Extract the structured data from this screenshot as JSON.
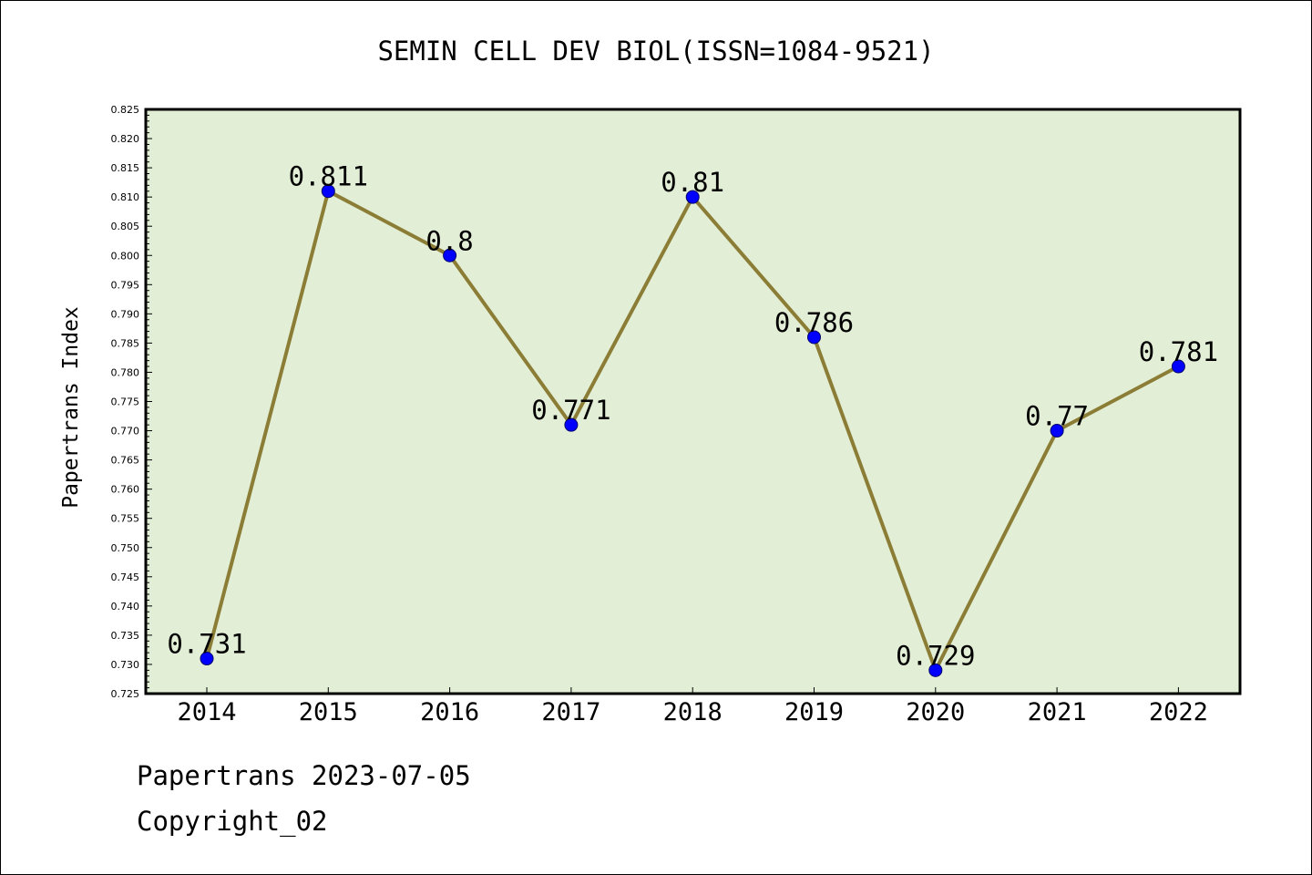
{
  "chart_data": {
    "type": "line",
    "title": "SEMIN CELL DEV BIOL(ISSN=1084-9521)",
    "xlabel": "",
    "ylabel": "Papertrans Index",
    "categories": [
      "2014",
      "2015",
      "2016",
      "2017",
      "2018",
      "2019",
      "2020",
      "2021",
      "2022"
    ],
    "series": [
      {
        "values": [
          0.731,
          0.811,
          0.8,
          0.771,
          0.81,
          0.786,
          0.729,
          0.77,
          0.781
        ]
      }
    ],
    "data_labels": [
      "0.731",
      "0.811",
      "0.8",
      "0.771",
      "0.81",
      "0.786",
      "0.729",
      "0.77",
      "0.781"
    ],
    "ylim": [
      0.725,
      0.825
    ],
    "yticks": [
      "0.725",
      "0.730",
      "0.735",
      "0.740",
      "0.745",
      "0.750",
      "0.755",
      "0.760",
      "0.765",
      "0.770",
      "0.775",
      "0.780",
      "0.785",
      "0.790",
      "0.795",
      "0.800",
      "0.805",
      "0.810",
      "0.815",
      "0.820",
      "0.825"
    ],
    "grid": false,
    "legend": "none",
    "colors": {
      "plot_background": "#e2efd6",
      "line": "#8b7d35",
      "marker": "#0000ff"
    }
  },
  "footer": {
    "line1": "Papertrans 2023-07-05",
    "line2": "Copyright_02"
  }
}
